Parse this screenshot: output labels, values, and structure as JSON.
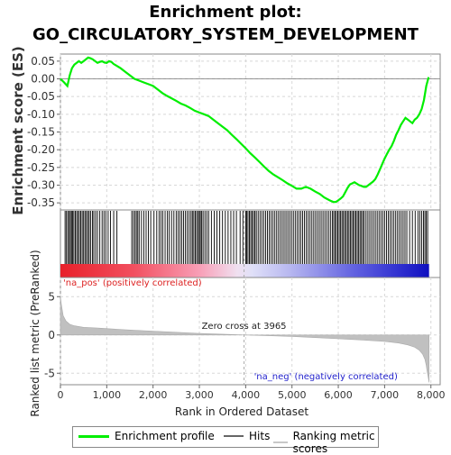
{
  "title_line1": "Enrichment plot:",
  "title_line2": "GO_CIRCULATORY_SYSTEM_DEVELOPMENT",
  "colors": {
    "profile": "#00ee00",
    "hits": "#000000",
    "ranking": "#c0c0c0",
    "pos_label": "#dd2222",
    "neg_label": "#2222cc",
    "grid": "#d8d8d8"
  },
  "chart_data": [
    {
      "type": "line",
      "name": "enrichment-profile",
      "ylabel": "Enrichment score (ES)",
      "ylim": [
        -0.37,
        0.07
      ],
      "yticks": [
        0.05,
        0.0,
        -0.05,
        -0.1,
        -0.15,
        -0.2,
        -0.25,
        -0.3,
        -0.35
      ],
      "ytick_labels": [
        "0.05",
        "0.00",
        "-0.05",
        "-0.10",
        "-0.15",
        "-0.20",
        "-0.25",
        "-0.30",
        "-0.35"
      ],
      "xlim": [
        0,
        8200
      ],
      "grid": true,
      "x": [
        0,
        80,
        150,
        200,
        250,
        300,
        350,
        400,
        450,
        500,
        550,
        600,
        650,
        700,
        750,
        800,
        850,
        900,
        950,
        1000,
        1050,
        1100,
        1150,
        1200,
        1300,
        1400,
        1500,
        1600,
        1700,
        1800,
        1900,
        2000,
        2100,
        2200,
        2300,
        2400,
        2500,
        2600,
        2700,
        2800,
        2900,
        3000,
        3100,
        3200,
        3300,
        3400,
        3500,
        3600,
        3700,
        3800,
        3900,
        4000,
        4100,
        4200,
        4300,
        4400,
        4500,
        4600,
        4700,
        4800,
        4900,
        5000,
        5100,
        5200,
        5300,
        5400,
        5500,
        5600,
        5700,
        5800,
        5850,
        5900,
        5950,
        6000,
        6050,
        6100,
        6150,
        6200,
        6250,
        6300,
        6350,
        6400,
        6450,
        6500,
        6550,
        6600,
        6650,
        6700,
        6750,
        6800,
        6850,
        6900,
        6950,
        7000,
        7050,
        7100,
        7150,
        7200,
        7250,
        7300,
        7350,
        7400,
        7450,
        7500,
        7550,
        7600,
        7650,
        7700,
        7750,
        7800,
        7850,
        7900,
        7950
      ],
      "y": [
        0.0,
        -0.01,
        -0.02,
        0.01,
        0.03,
        0.04,
        0.045,
        0.05,
        0.045,
        0.05,
        0.055,
        0.06,
        0.058,
        0.055,
        0.05,
        0.045,
        0.048,
        0.05,
        0.046,
        0.045,
        0.05,
        0.048,
        0.042,
        0.038,
        0.03,
        0.02,
        0.01,
        0.0,
        -0.005,
        -0.01,
        -0.015,
        -0.02,
        -0.03,
        -0.04,
        -0.048,
        -0.055,
        -0.062,
        -0.07,
        -0.075,
        -0.082,
        -0.09,
        -0.095,
        -0.1,
        -0.105,
        -0.115,
        -0.125,
        -0.135,
        -0.145,
        -0.158,
        -0.17,
        -0.183,
        -0.196,
        -0.21,
        -0.222,
        -0.235,
        -0.248,
        -0.26,
        -0.27,
        -0.278,
        -0.286,
        -0.295,
        -0.302,
        -0.31,
        -0.31,
        -0.305,
        -0.31,
        -0.318,
        -0.325,
        -0.335,
        -0.342,
        -0.345,
        -0.348,
        -0.347,
        -0.343,
        -0.338,
        -0.332,
        -0.32,
        -0.308,
        -0.298,
        -0.295,
        -0.292,
        -0.296,
        -0.3,
        -0.302,
        -0.305,
        -0.305,
        -0.3,
        -0.295,
        -0.29,
        -0.283,
        -0.27,
        -0.255,
        -0.24,
        -0.225,
        -0.212,
        -0.2,
        -0.19,
        -0.175,
        -0.158,
        -0.145,
        -0.13,
        -0.12,
        -0.11,
        -0.115,
        -0.12,
        -0.125,
        -0.115,
        -0.11,
        -0.1,
        -0.085,
        -0.06,
        -0.02,
        0.005
      ]
    },
    {
      "type": "scatter",
      "name": "hits",
      "xlim": [
        0,
        8200
      ],
      "x": [
        100,
        130,
        160,
        190,
        215,
        240,
        265,
        290,
        320,
        350,
        380,
        410,
        440,
        470,
        500,
        530,
        560,
        590,
        620,
        650,
        690,
        720,
        760,
        800,
        850,
        900,
        940,
        980,
        1030,
        1080,
        1150,
        1220,
        1540,
        1575,
        1610,
        1640,
        1670,
        1700,
        1750,
        1800,
        1850,
        1900,
        1950,
        2020,
        2080,
        2130,
        2170,
        2210,
        2260,
        2310,
        2350,
        2400,
        2450,
        2500,
        2540,
        2580,
        2620,
        2660,
        2700,
        2740,
        2780,
        2820,
        2850,
        2880,
        2910,
        2940,
        2970,
        3000,
        3020,
        3050,
        3080,
        3120,
        3160,
        3200,
        3260,
        3320,
        3380,
        3440,
        3500,
        3560,
        3620,
        3680,
        3740,
        3800,
        3880,
        3940,
        4000,
        4020,
        4050,
        4080,
        4110,
        4140,
        4170,
        4200,
        4230,
        4270,
        4310,
        4350,
        4390,
        4430,
        4470,
        4510,
        4550,
        4590,
        4630,
        4670,
        4710,
        4750,
        4790,
        4830,
        4870,
        4910,
        4950,
        4990,
        5030,
        5070,
        5110,
        5150,
        5190,
        5230,
        5270,
        5310,
        5350,
        5390,
        5430,
        5470,
        5510,
        5550,
        5590,
        5630,
        5670,
        5710,
        5750,
        5790,
        5830,
        5870,
        5900,
        5930,
        5960,
        5990,
        6020,
        6050,
        6080,
        6110,
        6140,
        6170,
        6200,
        6230,
        6260,
        6290,
        6320,
        6350,
        6380,
        6410,
        6440,
        6470,
        6500,
        6530,
        6560,
        6600,
        6640,
        6680,
        6720,
        6760,
        6800,
        6840,
        6880,
        6920,
        6960,
        7000,
        7040,
        7080,
        7120,
        7160,
        7200,
        7240,
        7280,
        7320,
        7360,
        7400,
        7440,
        7480,
        7540,
        7600,
        7660,
        7720,
        7760,
        7800,
        7840,
        7870,
        7900,
        7930
      ]
    },
    {
      "type": "area",
      "name": "ranking-metric-scores",
      "ylabel": "Ranked list metric (PreRanked)",
      "xlabel": "Rank in Ordered Dataset",
      "ylim": [
        -6.5,
        7.5
      ],
      "yticks": [
        5,
        0,
        -5
      ],
      "ytick_labels": [
        "5",
        "0",
        "-5"
      ],
      "xlim": [
        0,
        8200
      ],
      "xticks": [
        0,
        1000,
        2000,
        3000,
        4000,
        5000,
        6000,
        7000,
        8000
      ],
      "xtick_labels": [
        "0",
        "1,000",
        "2,000",
        "3,000",
        "4,000",
        "5,000",
        "6,000",
        "7,000",
        "8,000"
      ],
      "zero_cross": 3965,
      "zero_cross_label": "Zero cross at 3965",
      "pos_label": "'na_pos' (positively correlated)",
      "neg_label": "'na_neg' (negatively correlated)",
      "x": [
        0,
        20,
        60,
        120,
        200,
        300,
        500,
        800,
        1200,
        1600,
        2000,
        2500,
        3000,
        3500,
        3965,
        4500,
        5000,
        5500,
        6000,
        6500,
        7000,
        7300,
        7500,
        7650,
        7750,
        7820,
        7870,
        7900,
        7920,
        7940,
        7960
      ],
      "y": [
        5.0,
        4.0,
        2.5,
        1.8,
        1.4,
        1.2,
        1.0,
        0.9,
        0.75,
        0.6,
        0.5,
        0.35,
        0.2,
        0.1,
        0.0,
        -0.1,
        -0.2,
        -0.35,
        -0.5,
        -0.65,
        -0.85,
        -1.05,
        -1.3,
        -1.6,
        -2.0,
        -2.5,
        -3.2,
        -4.0,
        -4.8,
        -5.5,
        -6.2
      ]
    }
  ],
  "legend": {
    "items": [
      {
        "label": "Enrichment profile",
        "color": "#00ee00"
      },
      {
        "label": "Hits",
        "color": "#000000"
      },
      {
        "label": "Ranking metric scores",
        "color": "#c0c0c0"
      }
    ]
  }
}
